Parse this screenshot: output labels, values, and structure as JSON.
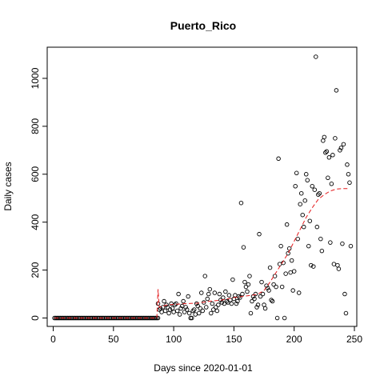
{
  "chart_data": {
    "type": "scatter",
    "title": "Puerto_Rico",
    "xlabel": "Days since 2020-01-01",
    "ylabel": "Daily cases",
    "xlim": [
      -5,
      252
    ],
    "ylim": [
      -35,
      1130
    ],
    "xticks": [
      0,
      50,
      100,
      150,
      200,
      250
    ],
    "yticks": [
      0,
      200,
      400,
      600,
      800,
      1000
    ],
    "grid": false,
    "legend": "none",
    "colors": {
      "points": "#000000",
      "trend": "#e41a1c"
    },
    "zero_days": {
      "start": 1,
      "end": 87,
      "value": 0
    },
    "points": [
      [
        87,
        60
      ],
      [
        88,
        35
      ],
      [
        89,
        40
      ],
      [
        90,
        25
      ],
      [
        91,
        45
      ],
      [
        92,
        70
      ],
      [
        93,
        30
      ],
      [
        94,
        55
      ],
      [
        95,
        45
      ],
      [
        96,
        20
      ],
      [
        97,
        35
      ],
      [
        98,
        60
      ],
      [
        99,
        40
      ],
      [
        100,
        25
      ],
      [
        101,
        55
      ],
      [
        102,
        60
      ],
      [
        103,
        30
      ],
      [
        104,
        100
      ],
      [
        105,
        15
      ],
      [
        106,
        40
      ],
      [
        107,
        50
      ],
      [
        108,
        70
      ],
      [
        109,
        25
      ],
      [
        110,
        45
      ],
      [
        111,
        35
      ],
      [
        112,
        90
      ],
      [
        113,
        20
      ],
      [
        114,
        0
      ],
      [
        115,
        0
      ],
      [
        116,
        30
      ],
      [
        117,
        35
      ],
      [
        118,
        15
      ],
      [
        119,
        60
      ],
      [
        120,
        50
      ],
      [
        121,
        20
      ],
      [
        122,
        40
      ],
      [
        123,
        105
      ],
      [
        124,
        30
      ],
      [
        125,
        65
      ],
      [
        126,
        175
      ],
      [
        127,
        45
      ],
      [
        128,
        80
      ],
      [
        129,
        100
      ],
      [
        130,
        120
      ],
      [
        131,
        20
      ],
      [
        132,
        60
      ],
      [
        133,
        35
      ],
      [
        134,
        105
      ],
      [
        135,
        45
      ],
      [
        136,
        30
      ],
      [
        137,
        55
      ],
      [
        138,
        100
      ],
      [
        139,
        75
      ],
      [
        140,
        65
      ],
      [
        141,
        85
      ],
      [
        142,
        60
      ],
      [
        143,
        110
      ],
      [
        144,
        70
      ],
      [
        145,
        65
      ],
      [
        146,
        95
      ],
      [
        147,
        75
      ],
      [
        148,
        60
      ],
      [
        149,
        160
      ],
      [
        150,
        80
      ],
      [
        151,
        95
      ],
      [
        152,
        60
      ],
      [
        153,
        70
      ],
      [
        154,
        90
      ],
      [
        155,
        85
      ],
      [
        156,
        480
      ],
      [
        157,
        100
      ],
      [
        158,
        295
      ],
      [
        159,
        150
      ],
      [
        160,
        130
      ],
      [
        161,
        110
      ],
      [
        162,
        140
      ],
      [
        163,
        175
      ],
      [
        164,
        20
      ],
      [
        165,
        70
      ],
      [
        166,
        90
      ],
      [
        167,
        80
      ],
      [
        168,
        100
      ],
      [
        169,
        45
      ],
      [
        170,
        55
      ],
      [
        171,
        350
      ],
      [
        172,
        90
      ],
      [
        173,
        150
      ],
      [
        174,
        100
      ],
      [
        175,
        55
      ],
      [
        176,
        40
      ],
      [
        177,
        135
      ],
      [
        178,
        125
      ],
      [
        179,
        115
      ],
      [
        180,
        210
      ],
      [
        181,
        75
      ],
      [
        182,
        70
      ],
      [
        183,
        140
      ],
      [
        184,
        175
      ],
      [
        185,
        130
      ],
      [
        186,
        0
      ],
      [
        187,
        665
      ],
      [
        188,
        225
      ],
      [
        189,
        300
      ],
      [
        190,
        130
      ],
      [
        191,
        230
      ],
      [
        192,
        0
      ],
      [
        193,
        185
      ],
      [
        194,
        390
      ],
      [
        195,
        270
      ],
      [
        196,
        290
      ],
      [
        197,
        190
      ],
      [
        198,
        240
      ],
      [
        199,
        115
      ],
      [
        200,
        195
      ],
      [
        201,
        550
      ],
      [
        202,
        605
      ],
      [
        203,
        330
      ],
      [
        204,
        105
      ],
      [
        205,
        475
      ],
      [
        206,
        520
      ],
      [
        207,
        430
      ],
      [
        208,
        380
      ],
      [
        209,
        490
      ],
      [
        210,
        600
      ],
      [
        211,
        575
      ],
      [
        212,
        300
      ],
      [
        213,
        405
      ],
      [
        214,
        220
      ],
      [
        215,
        550
      ],
      [
        216,
        215
      ],
      [
        217,
        535
      ],
      [
        218,
        1090
      ],
      [
        219,
        380
      ],
      [
        220,
        515
      ],
      [
        221,
        520
      ],
      [
        222,
        330
      ],
      [
        223,
        280
      ],
      [
        224,
        740
      ],
      [
        225,
        755
      ],
      [
        226,
        690
      ],
      [
        227,
        695
      ],
      [
        228,
        585
      ],
      [
        229,
        670
      ],
      [
        230,
        315
      ],
      [
        231,
        560
      ],
      [
        232,
        680
      ],
      [
        233,
        225
      ],
      [
        234,
        750
      ],
      [
        235,
        950
      ],
      [
        236,
        220
      ],
      [
        237,
        205
      ],
      [
        238,
        700
      ],
      [
        239,
        710
      ],
      [
        240,
        310
      ],
      [
        241,
        725
      ],
      [
        242,
        100
      ],
      [
        243,
        20
      ],
      [
        244,
        640
      ],
      [
        245,
        600
      ],
      [
        246,
        565
      ],
      [
        247,
        300
      ]
    ],
    "trend": [
      [
        1,
        0
      ],
      [
        86,
        0
      ],
      [
        87,
        120
      ],
      [
        88,
        45
      ],
      [
        95,
        55
      ],
      [
        110,
        60
      ],
      [
        120,
        62
      ],
      [
        130,
        70
      ],
      [
        140,
        75
      ],
      [
        150,
        85
      ],
      [
        160,
        92
      ],
      [
        165,
        95
      ],
      [
        170,
        100
      ],
      [
        175,
        115
      ],
      [
        180,
        150
      ],
      [
        185,
        190
      ],
      [
        190,
        230
      ],
      [
        195,
        270
      ],
      [
        200,
        320
      ],
      [
        205,
        370
      ],
      [
        210,
        420
      ],
      [
        215,
        460
      ],
      [
        220,
        495
      ],
      [
        225,
        515
      ],
      [
        230,
        530
      ],
      [
        235,
        538
      ],
      [
        240,
        540
      ],
      [
        245,
        540
      ]
    ]
  }
}
